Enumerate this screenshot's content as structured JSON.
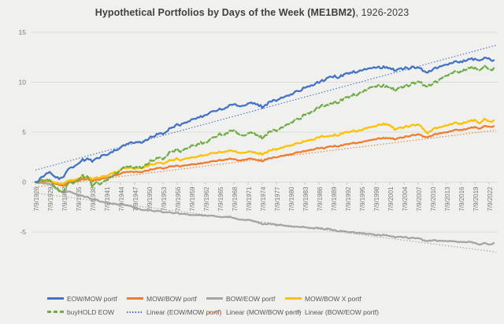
{
  "title": {
    "main": "Hypothetical Portfolios by Days of the Week (ME1BM2)",
    "suffix": ", 1926-2023"
  },
  "colors": {
    "background": "#f0f0ee",
    "gridline": "#dbdbd9",
    "axis_text": "#7a7a7a",
    "title_text": "#3f3f3f",
    "legend_text": "#595959",
    "blue": "#4472c4",
    "orange": "#ed7d31",
    "gray": "#a5a5a5",
    "yellow": "#ffc000",
    "green": "#70ad47"
  },
  "chart_data": {
    "type": "line",
    "title": "Hypothetical Portfolios by Days of the Week (ME1BM2), 1926-2023",
    "legend_position": "bottom",
    "grid": true,
    "y_axis": {
      "ticks": [
        15,
        10,
        5,
        0,
        -5
      ],
      "range": [
        -7.8,
        15.8
      ]
    },
    "x_axis": {
      "start_year": 1926,
      "end_year": 2023,
      "tick_labels": [
        "7/9/1926",
        "7/9/1929",
        "7/9/1932",
        "7/9/1935",
        "7/9/1938",
        "7/9/1941",
        "7/9/1944",
        "7/9/1947",
        "7/9/1950",
        "7/9/1953",
        "7/9/1956",
        "7/9/1959",
        "7/9/1962",
        "7/9/1965",
        "7/9/1968",
        "7/9/1971",
        "7/9/1974",
        "7/9/1977",
        "7/9/1980",
        "7/9/1983",
        "7/9/1986",
        "7/9/1989",
        "7/9/1992",
        "7/9/1995",
        "7/9/1998",
        "7/9/2001",
        "7/9/2004",
        "7/9/2007",
        "7/9/2010",
        "7/9/2013",
        "7/9/2016",
        "7/9/2019",
        "7/9/2022"
      ]
    },
    "series_start_year": 1926,
    "series": [
      {
        "name": "BOW/EOW portf",
        "color": "#a5a5a5",
        "line_style": "solid",
        "values": [
          0,
          -0.1,
          -0.1,
          -0.2,
          -0.5,
          -0.9,
          -1.1,
          -0.9,
          -1.1,
          -1.3,
          -1.4,
          -1.5,
          -1.8,
          -1.8,
          -2.0,
          -2.1,
          -2.2,
          -2.2,
          -2.3,
          -2.3,
          -2.4,
          -2.6,
          -2.7,
          -2.8,
          -2.8,
          -2.9,
          -2.9,
          -3.0,
          -3.0,
          -3.1,
          -3.1,
          -3.2,
          -3.2,
          -3.3,
          -3.3,
          -3.3,
          -3.4,
          -3.4,
          -3.4,
          -3.5,
          -3.5,
          -3.5,
          -3.6,
          -3.7,
          -3.8,
          -3.8,
          -3.9,
          -4.0,
          -4.2,
          -4.2,
          -4.2,
          -4.3,
          -4.3,
          -4.4,
          -4.4,
          -4.5,
          -4.5,
          -4.5,
          -4.6,
          -4.6,
          -4.6,
          -4.7,
          -4.7,
          -4.8,
          -4.9,
          -4.9,
          -5.0,
          -5.0,
          -5.1,
          -5.1,
          -5.2,
          -5.2,
          -5.3,
          -5.3,
          -5.3,
          -5.4,
          -5.5,
          -5.5,
          -5.5,
          -5.6,
          -5.6,
          -5.6,
          -5.8,
          -5.9,
          -5.8,
          -5.9,
          -5.9,
          -5.9,
          -5.9,
          -6.0,
          -6.0,
          -6.0,
          -6.0,
          -6.1,
          -6.3,
          -6.1,
          -6.3,
          -6.1
        ]
      },
      {
        "name": "MOW/BOW portf",
        "color": "#ed7d31",
        "line_style": "solid",
        "values": [
          0,
          0.0,
          0.1,
          0.1,
          -0.1,
          -0.3,
          -0.4,
          0.0,
          0.0,
          0.1,
          0.3,
          0.3,
          0.1,
          0.2,
          0.3,
          0.4,
          0.5,
          0.7,
          0.8,
          1.0,
          1.0,
          1.0,
          1.0,
          1.1,
          1.2,
          1.3,
          1.4,
          1.4,
          1.5,
          1.6,
          1.6,
          1.6,
          1.7,
          1.8,
          1.8,
          1.9,
          1.9,
          2.0,
          2.1,
          2.2,
          2.2,
          2.3,
          2.3,
          2.2,
          2.2,
          2.3,
          2.3,
          2.2,
          2.1,
          2.3,
          2.4,
          2.5,
          2.6,
          2.7,
          2.8,
          2.9,
          3.0,
          3.1,
          3.2,
          3.3,
          3.4,
          3.4,
          3.5,
          3.6,
          3.6,
          3.7,
          3.8,
          3.9,
          3.9,
          4.0,
          4.1,
          4.2,
          4.3,
          4.4,
          4.4,
          4.4,
          4.3,
          4.4,
          4.5,
          4.6,
          4.7,
          4.8,
          4.6,
          4.5,
          4.7,
          4.8,
          4.9,
          5.0,
          5.1,
          5.2,
          5.2,
          5.3,
          5.4,
          5.5,
          5.3,
          5.6,
          5.5,
          5.6
        ]
      },
      {
        "name": "MOW/BOW X portf",
        "color": "#ffc000",
        "line_style": "solid",
        "values": [
          0,
          0.1,
          0.2,
          0.2,
          0.0,
          -0.2,
          -0.2,
          0.2,
          0.2,
          0.3,
          0.5,
          0.5,
          0.3,
          0.4,
          0.5,
          0.6,
          0.8,
          1.0,
          1.2,
          1.4,
          1.4,
          1.3,
          1.4,
          1.5,
          1.7,
          1.8,
          1.9,
          1.9,
          2.1,
          2.2,
          2.3,
          2.2,
          2.4,
          2.5,
          2.5,
          2.7,
          2.6,
          2.8,
          2.9,
          3.0,
          3.0,
          3.1,
          3.1,
          3.0,
          2.9,
          3.0,
          3.0,
          2.9,
          2.8,
          3.0,
          3.2,
          3.3,
          3.4,
          3.6,
          3.7,
          3.8,
          3.9,
          4.1,
          4.2,
          4.3,
          4.5,
          4.6,
          4.5,
          4.7,
          4.7,
          4.9,
          5.0,
          5.1,
          5.1,
          5.2,
          5.4,
          5.5,
          5.6,
          5.8,
          5.8,
          5.7,
          5.3,
          5.4,
          5.5,
          5.6,
          5.7,
          5.8,
          5.4,
          4.9,
          5.3,
          5.4,
          5.5,
          5.7,
          5.8,
          5.9,
          5.8,
          6.0,
          6.1,
          6.2,
          5.8,
          6.3,
          6.0,
          6.2
        ]
      },
      {
        "name": "buyHOLD EOW",
        "color": "#70ad47",
        "line_style": "dashed",
        "values": [
          0,
          0.1,
          0.3,
          0.2,
          -0.4,
          -0.9,
          -1.0,
          0.0,
          -0.1,
          0.2,
          0.6,
          0.5,
          -0.4,
          -0.1,
          -0.2,
          0.2,
          0.4,
          0.9,
          1.1,
          1.5,
          1.5,
          1.4,
          1.5,
          1.6,
          2.0,
          2.2,
          2.4,
          2.4,
          2.8,
          3.1,
          3.2,
          3.1,
          3.4,
          3.7,
          3.7,
          4.0,
          3.8,
          4.2,
          4.5,
          4.8,
          4.7,
          5.0,
          5.2,
          4.9,
          4.6,
          4.8,
          4.9,
          4.7,
          4.4,
          4.8,
          5.1,
          5.2,
          5.4,
          5.7,
          6.0,
          6.2,
          6.3,
          6.8,
          6.9,
          7.2,
          7.5,
          7.7,
          7.6,
          8.0,
          8.0,
          8.3,
          8.5,
          8.7,
          8.7,
          9.0,
          9.2,
          9.5,
          9.6,
          9.7,
          9.6,
          9.5,
          9.2,
          9.4,
          9.6,
          9.7,
          9.9,
          10.1,
          9.8,
          9.6,
          9.9,
          10.0,
          10.4,
          10.7,
          10.9,
          11.0,
          11.0,
          11.3,
          11.4,
          11.4,
          11.1,
          11.6,
          11.2,
          11.4
        ]
      },
      {
        "name": "EOW/MOW portf",
        "color": "#4472c4",
        "line_style": "solid",
        "values": [
          0,
          0.3,
          0.8,
          1.0,
          0.6,
          0.3,
          0.5,
          1.4,
          1.5,
          1.8,
          2.2,
          2.3,
          2.1,
          2.3,
          2.6,
          2.7,
          2.9,
          3.2,
          3.4,
          3.7,
          3.9,
          3.9,
          4.0,
          4.1,
          4.4,
          4.6,
          4.8,
          4.9,
          5.2,
          5.5,
          5.7,
          5.8,
          6.0,
          6.3,
          6.4,
          6.6,
          6.6,
          6.9,
          7.1,
          7.3,
          7.3,
          7.6,
          7.8,
          7.7,
          7.6,
          7.8,
          7.9,
          7.8,
          7.5,
          7.8,
          8.1,
          8.2,
          8.4,
          8.6,
          8.8,
          9.0,
          9.1,
          9.5,
          9.6,
          9.8,
          10.0,
          10.2,
          10.4,
          10.6,
          10.5,
          10.7,
          10.9,
          11.0,
          11.0,
          11.2,
          11.3,
          11.4,
          11.5,
          11.5,
          11.5,
          11.4,
          11.2,
          11.3,
          11.4,
          11.4,
          11.5,
          11.5,
          11.2,
          11.0,
          11.3,
          11.4,
          11.6,
          11.8,
          11.9,
          12.0,
          12.0,
          12.2,
          12.3,
          12.3,
          12.1,
          12.4,
          12.3,
          12.2
        ]
      }
    ],
    "trendlines": [
      {
        "name": "Linear (EOW/MOW portf)",
        "color": "#4472c4",
        "start_year": 1926,
        "start_value": 1.2,
        "end_year": 2023.5,
        "end_value": 13.7
      },
      {
        "name": "Linear (MOW/BOW portf)",
        "color": "#ed7d31",
        "start_year": 1926,
        "start_value": -0.5,
        "end_year": 2023.5,
        "end_value": 5.2
      },
      {
        "name": "Linear (BOW/EOW portf)",
        "color": "#a5a5a5",
        "start_year": 1926,
        "start_value": -1.1,
        "end_year": 2023.5,
        "end_value": -7.0
      }
    ]
  },
  "legend": {
    "rows": [
      [
        {
          "label": "EOW/MOW portf",
          "color": "#4472c4",
          "style": "solid"
        },
        {
          "label": "MOW/BOW portf",
          "color": "#ed7d31",
          "style": "solid"
        },
        {
          "label": "BOW/EOW portf",
          "color": "#a5a5a5",
          "style": "solid"
        },
        {
          "label": "MOW/BOW X portf",
          "color": "#ffc000",
          "style": "solid"
        }
      ],
      [
        {
          "label": "buyHOLD EOW",
          "color": "#70ad47",
          "style": "dashed"
        },
        {
          "label": "Linear (EOW/MOW portf)",
          "color": "#4472c4",
          "style": "dotted"
        },
        {
          "label": "Linear (MOW/BOW portf)",
          "color": "#ed7d31",
          "style": "dotted"
        },
        {
          "label": "Linear (BOW/EOW portf)",
          "color": "#a5a5a5",
          "style": "dotted"
        }
      ]
    ]
  }
}
